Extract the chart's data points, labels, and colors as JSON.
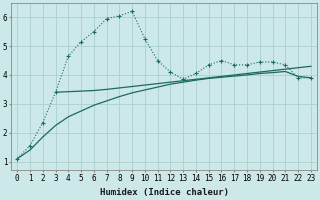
{
  "x_all": [
    0,
    1,
    2,
    3,
    4,
    5,
    6,
    7,
    8,
    9,
    10,
    11,
    12,
    13,
    14,
    15,
    16,
    17,
    18,
    19,
    20,
    21,
    22,
    23
  ],
  "line_dotted_markers": [
    1.1,
    1.55,
    2.35,
    3.4,
    4.65,
    5.15,
    5.5,
    5.95,
    6.05,
    6.2,
    5.25,
    4.5,
    4.1,
    3.85,
    4.05,
    4.35,
    4.5,
    4.35,
    4.35,
    4.45,
    4.45,
    4.35,
    3.9,
    3.9
  ],
  "line_flat_x": [
    3,
    4,
    5,
    6,
    7,
    8,
    9,
    10,
    11,
    12,
    13,
    14,
    15,
    16,
    17,
    18,
    19,
    20,
    21,
    22,
    23
  ],
  "line_flat_y": [
    3.4,
    3.42,
    3.44,
    3.46,
    3.5,
    3.55,
    3.6,
    3.65,
    3.7,
    3.75,
    3.8,
    3.85,
    3.9,
    3.95,
    4.0,
    4.05,
    4.1,
    4.15,
    4.2,
    4.25,
    4.3
  ],
  "line_diag_x": [
    0,
    1,
    2,
    3,
    4,
    5,
    6,
    7,
    8,
    9,
    10,
    11,
    12,
    13,
    14,
    15,
    16,
    17,
    18,
    19,
    20,
    21,
    22,
    23
  ],
  "line_diag_y": [
    1.1,
    1.4,
    1.85,
    2.25,
    2.55,
    2.75,
    2.95,
    3.1,
    3.25,
    3.38,
    3.48,
    3.58,
    3.68,
    3.75,
    3.82,
    3.88,
    3.92,
    3.96,
    4.0,
    4.05,
    4.08,
    4.12,
    3.95,
    3.9
  ],
  "bg_color": "#cce8e8",
  "line_color": "#1a6b5e",
  "xlabel": "Humidex (Indice chaleur)",
  "ylim": [
    0.7,
    6.5
  ],
  "xlim": [
    -0.5,
    23.5
  ],
  "yticks": [
    1,
    2,
    3,
    4,
    5,
    6
  ],
  "xticks": [
    0,
    1,
    2,
    3,
    4,
    5,
    6,
    7,
    8,
    9,
    10,
    11,
    12,
    13,
    14,
    15,
    16,
    17,
    18,
    19,
    20,
    21,
    22,
    23
  ],
  "grid_color": "#aad0d0",
  "label_fontsize": 6.5,
  "tick_fontsize": 5.5
}
